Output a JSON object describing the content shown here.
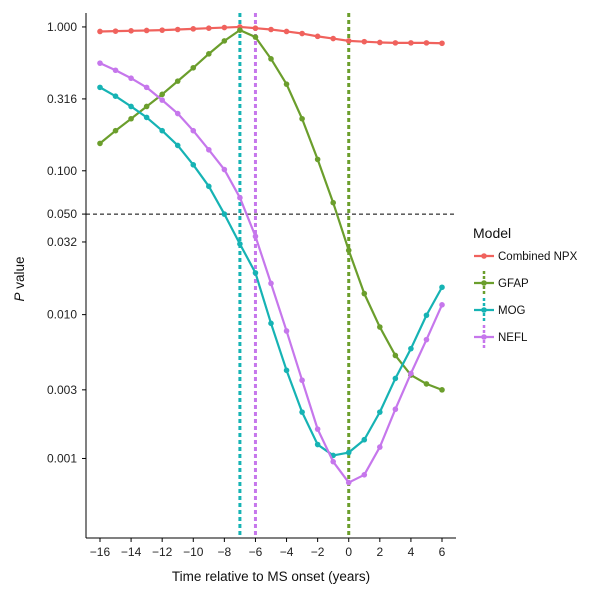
{
  "chart_data": {
    "type": "line",
    "xlabel": "Time relative to MS onset (years)",
    "ylabel_italic": "P",
    "ylabel_rest": " value",
    "yscale": "log",
    "xlim": [
      -16.9,
      6.9
    ],
    "ylim": [
      0.00028,
      1.25
    ],
    "x_ticks": [
      -16,
      -14,
      -12,
      -10,
      -8,
      -6,
      -4,
      -2,
      0,
      2,
      4,
      6
    ],
    "x_tick_labels": [
      "−16",
      "−14",
      "−12",
      "−10",
      "−8",
      "−6",
      "−4",
      "−2",
      "0",
      "2",
      "4",
      "6"
    ],
    "y_ticks": [
      0.001,
      0.003,
      0.01,
      0.032,
      0.05,
      0.1,
      0.316,
      1.0
    ],
    "y_tick_labels": [
      "0.001",
      "0.003",
      "0.010",
      "0.032",
      "0.050",
      "0.100",
      "0.316",
      "1.000"
    ],
    "threshold": 0.05,
    "x": [
      -16,
      -15,
      -14,
      -13,
      -12,
      -11,
      -10,
      -9,
      -8,
      -7,
      -6,
      -5,
      -4,
      -3,
      -2,
      -1,
      0,
      1,
      2,
      3,
      4,
      5,
      6
    ],
    "legend_title": "Model",
    "series": [
      {
        "name": "Combined NPX",
        "color": "#F0625D",
        "values": [
          0.93,
          0.935,
          0.94,
          0.945,
          0.95,
          0.96,
          0.97,
          0.98,
          0.99,
          1.0,
          0.98,
          0.96,
          0.93,
          0.9,
          0.86,
          0.83,
          0.8,
          0.79,
          0.78,
          0.775,
          0.775,
          0.775,
          0.77
        ]
      },
      {
        "name": "GFAP",
        "color": "#6B9E2C",
        "values": [
          0.155,
          0.19,
          0.23,
          0.28,
          0.34,
          0.42,
          0.52,
          0.65,
          0.8,
          0.95,
          0.85,
          0.6,
          0.4,
          0.23,
          0.12,
          0.06,
          0.028,
          0.014,
          0.0082,
          0.0052,
          0.0038,
          0.0033,
          0.003
        ]
      },
      {
        "name": "MOG",
        "color": "#16B3B4",
        "values": [
          0.38,
          0.33,
          0.28,
          0.235,
          0.19,
          0.15,
          0.11,
          0.078,
          0.05,
          0.031,
          0.0195,
          0.0087,
          0.0041,
          0.0021,
          0.00125,
          0.00105,
          0.0011,
          0.00135,
          0.0021,
          0.0036,
          0.0058,
          0.0099,
          0.0155
        ]
      },
      {
        "name": "NEFL",
        "color": "#C677EC",
        "values": [
          0.56,
          0.5,
          0.44,
          0.38,
          0.31,
          0.25,
          0.19,
          0.14,
          0.102,
          0.065,
          0.035,
          0.0165,
          0.0077,
          0.0035,
          0.0016,
          0.00095,
          0.00068,
          0.00077,
          0.0012,
          0.0022,
          0.0039,
          0.0067,
          0.0117
        ]
      }
    ],
    "vlines": [
      {
        "x": -7,
        "color": "#16B3B4"
      },
      {
        "x": -6,
        "color": "#C677EC"
      },
      {
        "x": 0,
        "color": "#6B9E2C"
      }
    ]
  }
}
